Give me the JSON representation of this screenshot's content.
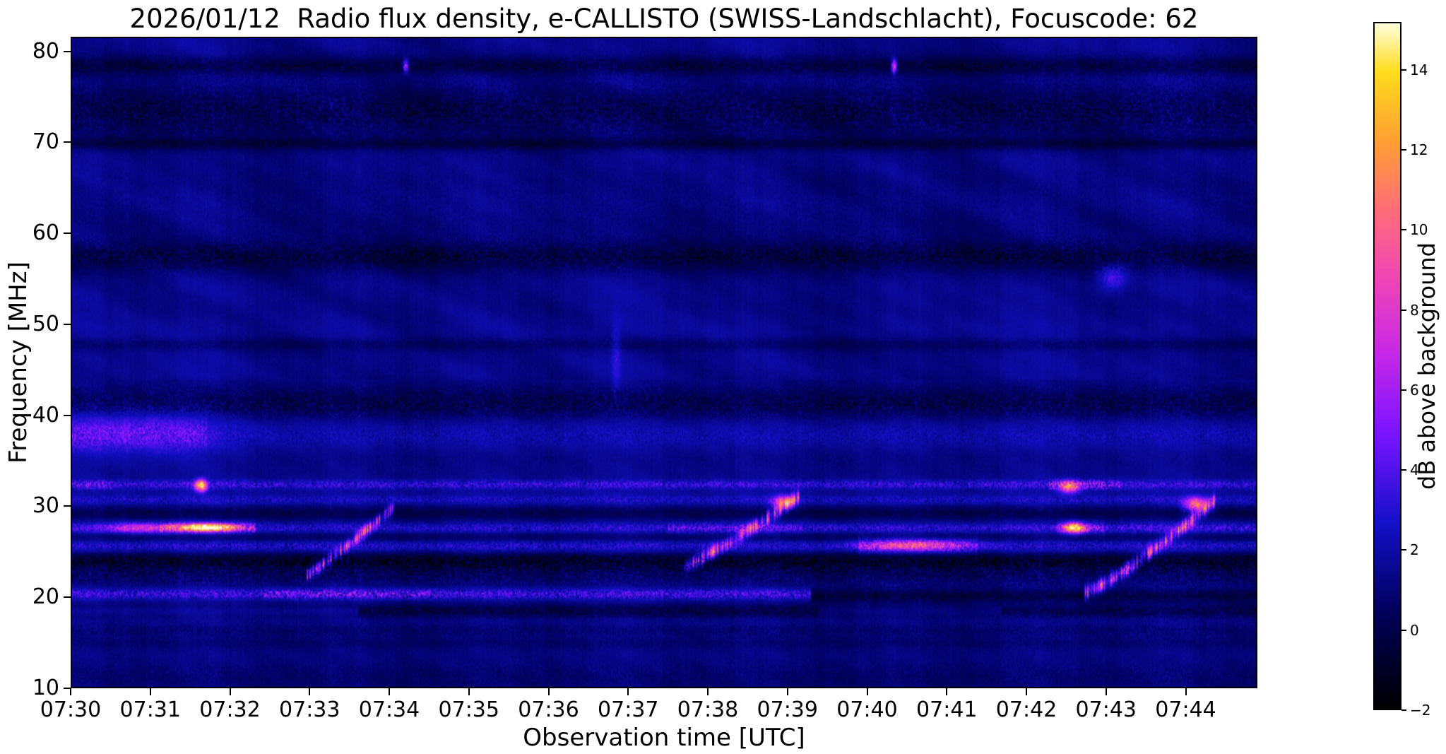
{
  "chart_data": {
    "type": "heatmap",
    "title": "2026/01/12  Radio flux density, e-CALLISTO (SWISS-Landschlacht), Focuscode: 62",
    "xlabel": "Observation time [UTC]",
    "ylabel": "Frequency [MHz]",
    "x_ticks": [
      "07:30",
      "07:31",
      "07:32",
      "07:33",
      "07:34",
      "07:35",
      "07:36",
      "07:37",
      "07:38",
      "07:39",
      "07:40",
      "07:41",
      "07:42",
      "07:43",
      "07:44"
    ],
    "x_tick_minutes": [
      0,
      1,
      2,
      3,
      4,
      5,
      6,
      7,
      8,
      9,
      10,
      11,
      12,
      13,
      14
    ],
    "x_range_min": [
      0,
      14.9
    ],
    "y_ticks": [
      10,
      20,
      30,
      40,
      50,
      60,
      70,
      80
    ],
    "y_range": [
      10,
      81.6
    ],
    "value_unit": "dB",
    "background_db": 1.3,
    "colorbar": {
      "label": "dB above background",
      "ticks": [
        -2,
        0,
        2,
        4,
        6,
        8,
        10,
        12,
        14
      ],
      "range": [
        -2,
        15.2
      ],
      "colormap": "gnuplot2",
      "stops": [
        [
          0.0,
          "#000000"
        ],
        [
          0.14,
          "#00005a"
        ],
        [
          0.27,
          "#1410c8"
        ],
        [
          0.4,
          "#7814ff"
        ],
        [
          0.52,
          "#c828e6"
        ],
        [
          0.63,
          "#f046b4"
        ],
        [
          0.73,
          "#ff6e78"
        ],
        [
          0.83,
          "#ffa032"
        ],
        [
          0.93,
          "#ffdc1e"
        ],
        [
          1.0,
          "#ffffdc"
        ]
      ]
    },
    "bands": [
      {
        "f": 78.6,
        "w": 0.7,
        "amp": -1.6,
        "s": 0.5
      },
      {
        "f": 73.5,
        "w": 1.9,
        "amp": -1.15,
        "s": 0.95
      },
      {
        "f": 70.0,
        "w": 0.45,
        "amp": -1.3,
        "s": 0.35
      },
      {
        "f": 63.0,
        "w": 3.5,
        "amp": -0.25,
        "s": 0.8
      },
      {
        "f": 57.6,
        "w": 1.1,
        "amp": -1.45,
        "s": 0.7
      },
      {
        "f": 47.8,
        "w": 0.5,
        "amp": -0.8,
        "s": 0.4
      },
      {
        "f": 41.0,
        "w": 1.3,
        "amp": -1.35,
        "s": 0.85
      },
      {
        "f": 38.0,
        "w": 1.7,
        "amp": 0.9,
        "s": 0.65,
        "seg": [
          [
            0,
            1.7,
            2.0
          ]
        ]
      },
      {
        "f": 35.5,
        "w": 1.0,
        "amp": -0.5,
        "s": 0.6
      },
      {
        "f": 32.3,
        "w": 0.35,
        "amp": 1.8,
        "s": 0.7,
        "seg": [
          [
            0,
            0.5,
            1.5
          ],
          [
            12.3,
            13.2,
            2.1
          ]
        ]
      },
      {
        "f": 30.6,
        "w": 0.4,
        "amp": 1.0,
        "s": 0.8
      },
      {
        "f": 29.2,
        "w": 0.5,
        "amp": -1.2,
        "s": 0.5
      },
      {
        "f": 27.5,
        "w": 0.4,
        "amp": 2.1,
        "s": 0.6,
        "seg": [
          [
            1.1,
            2.3,
            1.9
          ],
          [
            2.3,
            7.5,
            0.75
          ],
          [
            7.5,
            9.2,
            1.25
          ],
          [
            9.2,
            12.4,
            0.85
          ],
          [
            12.4,
            13.0,
            1.6
          ]
        ]
      },
      {
        "f": 26.4,
        "w": 0.4,
        "amp": -1.3,
        "s": 0.5
      },
      {
        "f": 25.5,
        "w": 0.7,
        "amp": 1.6,
        "s": 0.7,
        "seg": [
          [
            9.9,
            11.4,
            1.8
          ]
        ]
      },
      {
        "f": 24.0,
        "w": 0.7,
        "amp": -2.1,
        "s": 0.6
      },
      {
        "f": 22.3,
        "w": 0.9,
        "amp": -0.85,
        "s": 1.0
      },
      {
        "f": 20.2,
        "w": 0.4,
        "amp": 1.7,
        "s": 0.8,
        "seg": [
          [
            0,
            2.4,
            1.1
          ],
          [
            2.4,
            4.6,
            1.7
          ],
          [
            4.6,
            9.3,
            1.2
          ],
          [
            9.3,
            14.9,
            0.1
          ]
        ]
      },
      {
        "f": 20.0,
        "w": 0.5,
        "amp": -1.8,
        "s": 0.5,
        "seg": [
          [
            0,
            9.3,
            0
          ],
          [
            9.3,
            14.9,
            1
          ]
        ]
      },
      {
        "f": 18.3,
        "w": 0.5,
        "amp": -1.9,
        "s": 0.6
      },
      {
        "f": 18.3,
        "w": 0.4,
        "amp": 2.0,
        "s": 0.7,
        "seg": [
          [
            0,
            3.6,
            1
          ],
          [
            3.6,
            9.4,
            0.15
          ],
          [
            9.4,
            11.7,
            0.85
          ],
          [
            11.7,
            14.9,
            0.25
          ]
        ]
      },
      {
        "f": 16.2,
        "w": 0.5,
        "amp": -0.65,
        "s": 0.7
      },
      {
        "f": 14.8,
        "w": 0.45,
        "amp": -0.5,
        "s": 0.5
      },
      {
        "f": 11.2,
        "w": 1.1,
        "amp": -0.45,
        "s": 0.8
      }
    ],
    "bursts": [
      {
        "t0": 2.95,
        "t1": 4.05,
        "f0": 22.3,
        "f1": 29.8,
        "amp": 5.5,
        "w": 0.45,
        "curve": 1.1
      },
      {
        "t0": 7.7,
        "t1": 9.15,
        "f0": 23.2,
        "f1": 31.0,
        "amp": 6.0,
        "w": 0.5,
        "curve": 1.15
      },
      {
        "t0": 12.75,
        "t1": 14.4,
        "f0": 20.3,
        "f1": 30.6,
        "amp": 6.0,
        "w": 0.5,
        "curve": 1.2
      }
    ],
    "spots": [
      {
        "t": 1.62,
        "f": 32.2,
        "amp": 12,
        "wt": 0.05,
        "wf": 0.45
      },
      {
        "t": 1.7,
        "f": 27.55,
        "amp": 13,
        "wt": 0.26,
        "wf": 0.3
      },
      {
        "t": 0.85,
        "f": 27.5,
        "amp": 4.5,
        "wt": 0.3,
        "wf": 0.4
      },
      {
        "t": 0.8,
        "f": 38.2,
        "amp": 1.7,
        "wt": 0.8,
        "wf": 2.0
      },
      {
        "t": 4.2,
        "f": 78.6,
        "amp": 7,
        "wt": 0.025,
        "wf": 0.5
      },
      {
        "t": 10.35,
        "f": 78.6,
        "amp": 8,
        "wt": 0.025,
        "wf": 0.5
      },
      {
        "t": 12.62,
        "f": 27.5,
        "amp": 10.5,
        "wt": 0.1,
        "wf": 0.4
      },
      {
        "t": 12.55,
        "f": 32.0,
        "amp": 7.5,
        "wt": 0.09,
        "wf": 0.45
      },
      {
        "t": 14.15,
        "f": 30.1,
        "amp": 8.5,
        "wt": 0.1,
        "wf": 0.55
      },
      {
        "t": 8.95,
        "f": 30.4,
        "amp": 7,
        "wt": 0.09,
        "wf": 0.5
      },
      {
        "t": 10.6,
        "f": 25.6,
        "amp": 6,
        "wt": 0.45,
        "wf": 0.4
      },
      {
        "t": 13.1,
        "f": 55.2,
        "amp": 3,
        "wt": 0.12,
        "wf": 1.0
      },
      {
        "t": 6.85,
        "f": 46.5,
        "amp": 1.6,
        "wt": 0.04,
        "wf": 3.0
      }
    ]
  }
}
